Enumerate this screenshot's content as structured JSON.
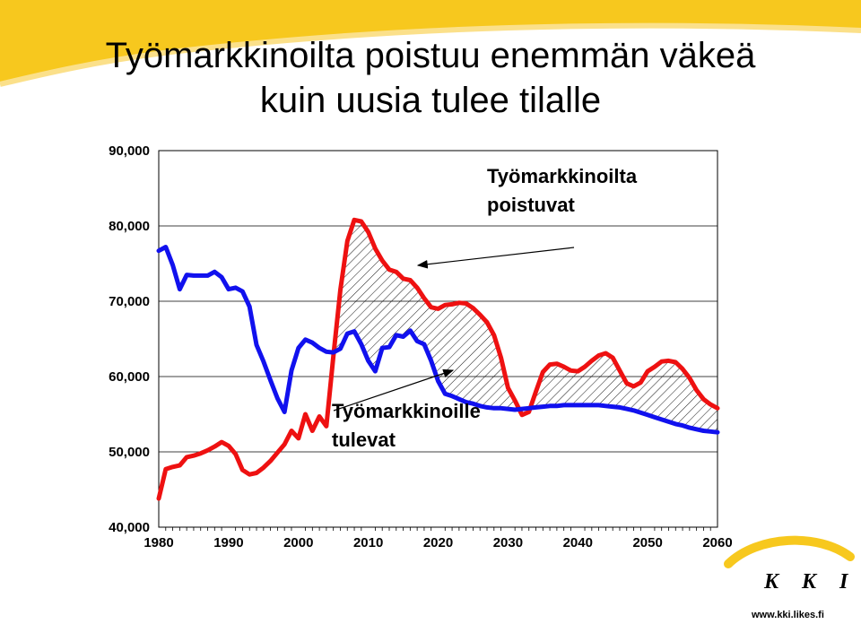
{
  "title_line1": "Työmarkkinoilta poistuu enemmän väkeä",
  "title_line2": "kuin uusia tulee tilalle",
  "logo": "K K I",
  "website": "www.kki.likes.fi",
  "colors": {
    "leaving": "#ee1111",
    "entering": "#1111ee",
    "accent_yellow": "#f7c81e"
  },
  "chart_data": {
    "type": "line",
    "title": "",
    "xlabel": "",
    "ylabel": "",
    "xlim": [
      1980,
      2060
    ],
    "ylim": [
      40000,
      90000
    ],
    "x_ticks": [
      "1980",
      "1990",
      "2000",
      "2010",
      "2020",
      "2030",
      "2040",
      "2050",
      "2060"
    ],
    "y_ticks": [
      "40,000",
      "50,000",
      "60,000",
      "70,000",
      "80,000",
      "90,000"
    ],
    "y_tick_values": [
      40000,
      50000,
      60000,
      70000,
      80000,
      90000
    ],
    "grid": "horizontal",
    "annotations": [
      {
        "id": "leaving",
        "lines": [
          "Työmarkkinoilta",
          "poistuvat"
        ]
      },
      {
        "id": "entering",
        "lines": [
          "Työmarkkinoille",
          "tulevat"
        ]
      }
    ],
    "hatched_area": "between series where leaving exceeds entering",
    "series": [
      {
        "id": "leaving",
        "color": "#ee1111",
        "x": [
          1980,
          1981,
          1982,
          1983,
          1984,
          1985,
          1986,
          1987,
          1988,
          1989,
          1990,
          1991,
          1992,
          1993,
          1994,
          1995,
          1996,
          1997,
          1998,
          1999,
          2000,
          2001,
          2002,
          2003,
          2004,
          2005,
          2006,
          2007,
          2008,
          2009,
          2010,
          2011,
          2012,
          2013,
          2014,
          2015,
          2016,
          2017,
          2018,
          2019,
          2020,
          2021,
          2022,
          2023,
          2024,
          2025,
          2026,
          2027,
          2028,
          2029,
          2030,
          2031,
          2032,
          2033,
          2034,
          2035,
          2036,
          2037,
          2038,
          2039,
          2040,
          2041,
          2042,
          2043,
          2044,
          2045,
          2046,
          2047,
          2048,
          2049,
          2050,
          2051,
          2052,
          2053,
          2054,
          2055,
          2056,
          2057,
          2058,
          2059,
          2060
        ],
        "values": [
          43800,
          47700,
          48000,
          48200,
          49300,
          49500,
          49800,
          50200,
          50700,
          51300,
          50800,
          49700,
          47600,
          47000,
          47200,
          47900,
          48800,
          49900,
          51000,
          52800,
          51800,
          55000,
          52800,
          54700,
          53400,
          62700,
          71500,
          78000,
          80800,
          80600,
          79200,
          77000,
          75400,
          74200,
          73900,
          73000,
          72800,
          71800,
          70400,
          69200,
          69000,
          69500,
          69600,
          69800,
          69700,
          69100,
          68200,
          67200,
          65500,
          62500,
          58500,
          56800,
          54900,
          55300,
          58000,
          60600,
          61600,
          61700,
          61300,
          60800,
          60700,
          61300,
          62100,
          62800,
          63100,
          62500,
          60800,
          59100,
          58700,
          59200,
          60700,
          61300,
          62000,
          62100,
          61900,
          61000,
          59800,
          58200,
          57000,
          56300,
          55800
        ],
        "name": ""
      },
      {
        "id": "entering",
        "color": "#1111ee",
        "x": [
          1980,
          1981,
          1982,
          1983,
          1984,
          1985,
          1986,
          1987,
          1988,
          1989,
          1990,
          1991,
          1992,
          1993,
          1994,
          1995,
          1996,
          1997,
          1998,
          1999,
          2000,
          2001,
          2002,
          2003,
          2004,
          2005,
          2006,
          2007,
          2008,
          2009,
          2010,
          2011,
          2012,
          2013,
          2014,
          2015,
          2016,
          2017,
          2018,
          2019,
          2020,
          2021,
          2022,
          2023,
          2024,
          2025,
          2026,
          2027,
          2028,
          2029,
          2030,
          2031,
          2032,
          2033,
          2034,
          2035,
          2036,
          2037,
          2038,
          2039,
          2040,
          2041,
          2042,
          2043,
          2044,
          2045,
          2046,
          2047,
          2048,
          2049,
          2050,
          2051,
          2052,
          2053,
          2054,
          2055,
          2056,
          2057,
          2058,
          2059,
          2060
        ],
        "values": [
          76700,
          77200,
          74800,
          71600,
          73500,
          73400,
          73400,
          73400,
          73900,
          73200,
          71600,
          71800,
          71300,
          69300,
          64200,
          62000,
          59500,
          57100,
          55300,
          60800,
          63800,
          64900,
          64500,
          63800,
          63300,
          63200,
          63700,
          65700,
          66000,
          64300,
          62100,
          60700,
          63800,
          63900,
          65500,
          65300,
          66100,
          64700,
          64300,
          62100,
          59400,
          57700,
          57400,
          57000,
          56600,
          56400,
          56100,
          55900,
          55800,
          55800,
          55700,
          55600,
          55700,
          55800,
          55900,
          56000,
          56100,
          56100,
          56200,
          56200,
          56200,
          56200,
          56200,
          56200,
          56100,
          56000,
          55900,
          55700,
          55500,
          55200,
          54900,
          54600,
          54300,
          54000,
          53700,
          53500,
          53200,
          53000,
          52800,
          52700,
          52600
        ],
        "name": ""
      }
    ]
  }
}
